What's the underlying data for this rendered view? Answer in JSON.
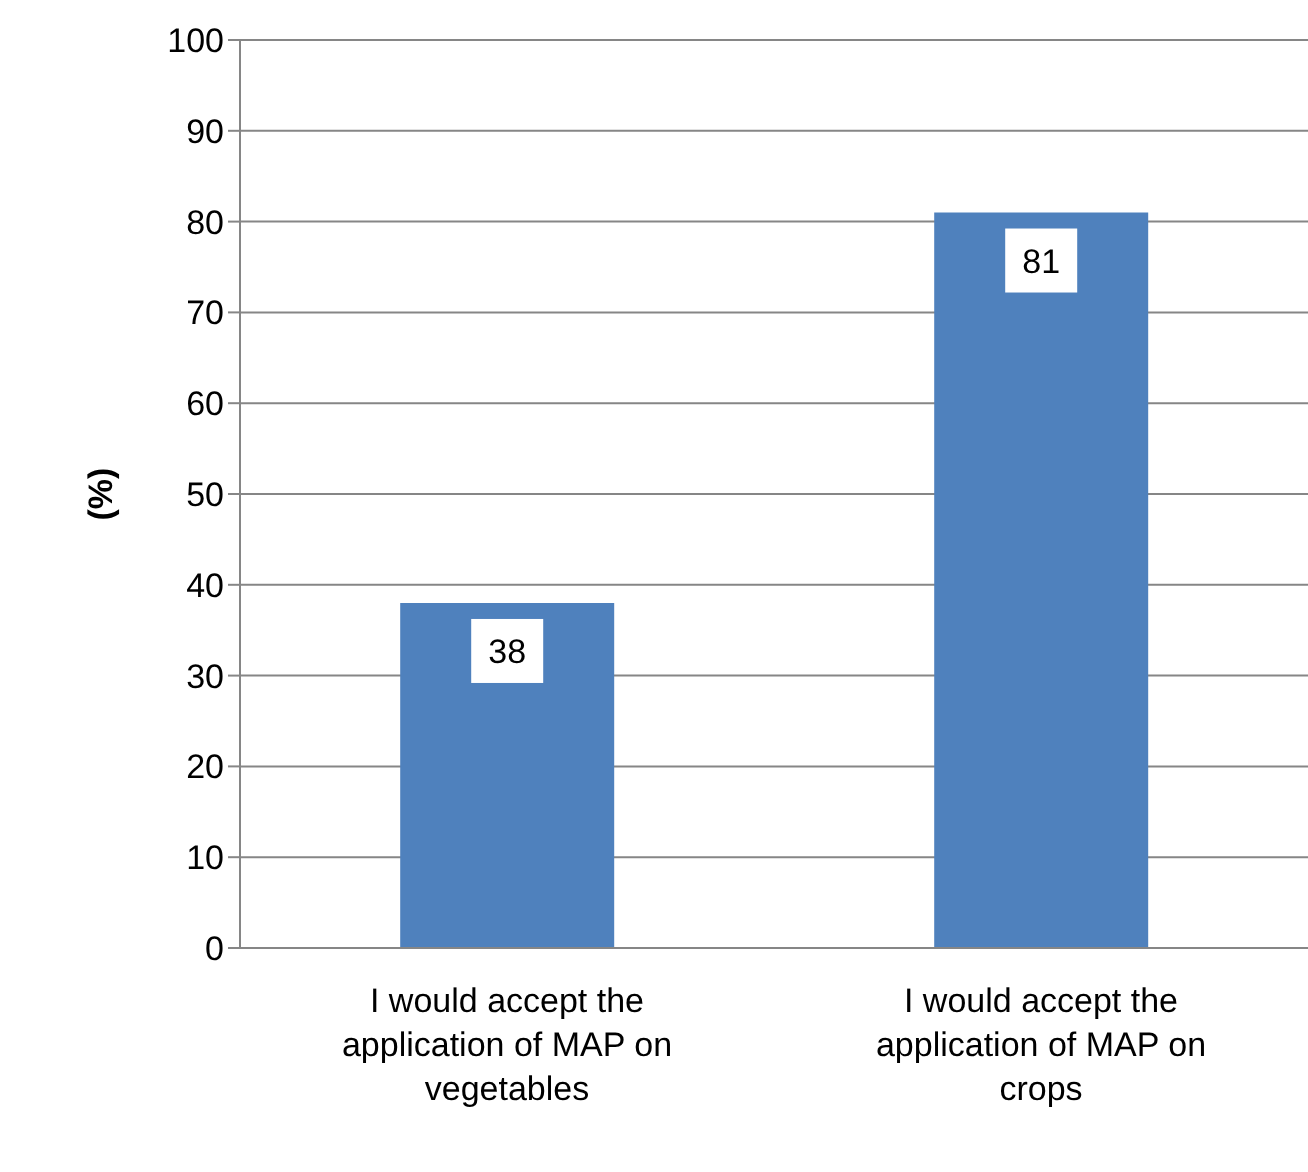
{
  "chart_data": {
    "type": "bar",
    "ylabel": "(%)",
    "categories": [
      "I would accept the application of MAP on vegetables",
      "I would accept the application of MAP on crops"
    ],
    "values": [
      38,
      81
    ],
    "color": "#4f81bd",
    "ylim": [
      0,
      100
    ],
    "yticks": [
      0,
      10,
      20,
      30,
      40,
      50,
      60,
      70,
      80,
      90,
      100
    ],
    "grid": "y",
    "data_labels": true
  }
}
